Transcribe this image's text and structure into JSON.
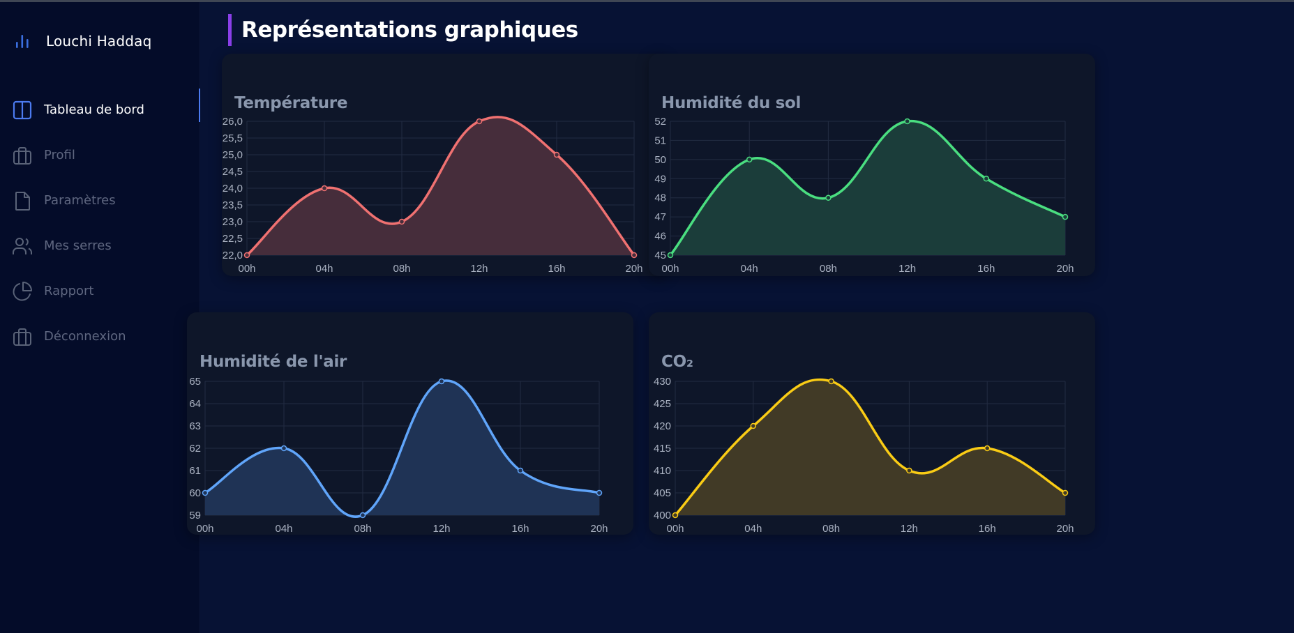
{
  "sidebar": {
    "brand_icon": "bar-chart-icon",
    "brand": "Louchi Haddaq",
    "items": [
      {
        "label": "Tableau de bord",
        "icon": "columns-icon",
        "active": true
      },
      {
        "label": "Profil",
        "icon": "briefcase-icon",
        "active": false
      },
      {
        "label": "Paramètres",
        "icon": "file-icon",
        "active": false
      },
      {
        "label": "Mes serres",
        "icon": "users-icon",
        "active": false
      },
      {
        "label": "Rapport",
        "icon": "pie-chart-icon",
        "active": false
      },
      {
        "label": "Déconnexion",
        "icon": "briefcase-icon",
        "active": false
      }
    ]
  },
  "page": {
    "title": "Représentations graphiques"
  },
  "colors": {
    "accent": "#8a3fe8",
    "active": "#4c7bf0"
  },
  "chart_data": [
    {
      "type": "area",
      "title": "Température",
      "x": [
        "00h",
        "04h",
        "08h",
        "12h",
        "16h",
        "20h"
      ],
      "values": [
        22.0,
        24.0,
        23.0,
        26.0,
        25.0,
        22.0
      ],
      "ylim": [
        22.0,
        26.0
      ],
      "yticks": [
        "22,0",
        "22,5",
        "23,0",
        "23,5",
        "24,0",
        "24,5",
        "25,0",
        "25,5",
        "26,0"
      ],
      "color": "#f07171",
      "fill": "#462d3b",
      "grid": true
    },
    {
      "type": "area",
      "title": "Humidité du sol",
      "x": [
        "00h",
        "04h",
        "08h",
        "12h",
        "16h",
        "20h"
      ],
      "values": [
        45,
        50,
        48,
        52,
        49,
        47
      ],
      "ylim": [
        45,
        52
      ],
      "yticks": [
        "45",
        "46",
        "47",
        "48",
        "49",
        "50",
        "51",
        "52"
      ],
      "color": "#4ade80",
      "fill": "#1b3d3a",
      "grid": true
    },
    {
      "type": "area",
      "title": "Humidité de l'air",
      "x": [
        "00h",
        "04h",
        "08h",
        "12h",
        "16h",
        "20h"
      ],
      "values": [
        60,
        62,
        59,
        65,
        61,
        60
      ],
      "ylim": [
        59,
        65
      ],
      "yticks": [
        "59",
        "60",
        "61",
        "62",
        "63",
        "64",
        "65"
      ],
      "color": "#60a5fa",
      "fill": "#1f3355",
      "grid": true
    },
    {
      "type": "area",
      "title": "CO₂",
      "x": [
        "00h",
        "04h",
        "08h",
        "12h",
        "16h",
        "20h"
      ],
      "values": [
        400,
        420,
        430,
        410,
        415,
        405
      ],
      "ylim": [
        400,
        430
      ],
      "yticks": [
        "400",
        "405",
        "410",
        "415",
        "420",
        "425",
        "430"
      ],
      "color": "#facc15",
      "fill": "#413a26",
      "grid": true
    }
  ]
}
